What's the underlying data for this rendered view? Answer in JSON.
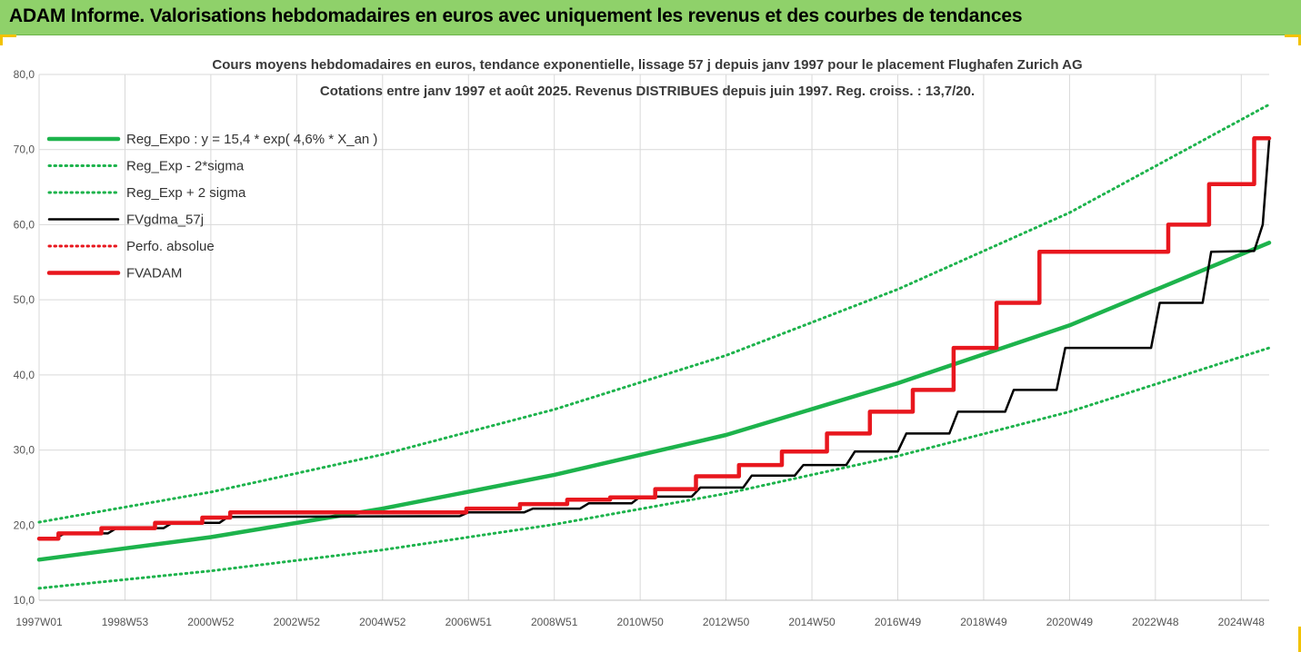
{
  "banner": {
    "title": "ADAM Informe. Valorisations hebdomadaires en euros avec uniquement les revenus et des courbes de tendances"
  },
  "chart_data": {
    "type": "line",
    "title_line1": "Cours moyens hebdomadaires en euros, tendance exponentielle, lissage 57 j depuis janv 1997  pour le placement Flughafen Zurich AG",
    "title_line2": "Cotations entre janv 1997 et août 2025.  Revenus DISTRIBUES depuis juin 1997.  Reg. croiss. : 13,7/20.",
    "xlabel": "",
    "ylabel": "",
    "xlim": [
      1997.0,
      2025.65
    ],
    "ylim": [
      10,
      80
    ],
    "grid": true,
    "legend_position": "top-left",
    "x_ticks": [
      {
        "label": "1997W01",
        "x": 1997.0
      },
      {
        "label": "1998W53",
        "x": 1999.0
      },
      {
        "label": "2000W52",
        "x": 2001.0
      },
      {
        "label": "2002W52",
        "x": 2003.0
      },
      {
        "label": "2004W52",
        "x": 2005.0
      },
      {
        "label": "2006W51",
        "x": 2007.0
      },
      {
        "label": "2008W51",
        "x": 2009.0
      },
      {
        "label": "2010W50",
        "x": 2011.0
      },
      {
        "label": "2012W50",
        "x": 2013.0
      },
      {
        "label": "2014W50",
        "x": 2015.0
      },
      {
        "label": "2016W49",
        "x": 2017.0
      },
      {
        "label": "2018W49",
        "x": 2019.0
      },
      {
        "label": "2020W49",
        "x": 2021.0
      },
      {
        "label": "2022W48",
        "x": 2023.0
      },
      {
        "label": "2024W48",
        "x": 2025.0
      }
    ],
    "y_ticks": [
      "10,0",
      "20,0",
      "30,0",
      "40,0",
      "50,0",
      "60,0",
      "70,0",
      "80,0"
    ],
    "y_tick_values": [
      10,
      20,
      30,
      40,
      50,
      60,
      70,
      80
    ],
    "series": [
      {
        "name": "Reg_Expo : y = 15,4 * exp( 4,6% *  X_an )",
        "style": "solid-thick",
        "color": "#1db34c",
        "x": [
          1997.0,
          2001.0,
          2005.0,
          2009.0,
          2013.0,
          2017.0,
          2021.0,
          2025.65
        ],
        "values": [
          15.4,
          18.4,
          22.2,
          26.7,
          32.0,
          38.9,
          46.6,
          57.6
        ]
      },
      {
        "name": "Reg_Exp - 2*sigma",
        "style": "dotted",
        "color": "#1db34c",
        "x": [
          1997.0,
          2001.0,
          2005.0,
          2009.0,
          2013.0,
          2017.0,
          2021.0,
          2025.65
        ],
        "values": [
          11.6,
          13.9,
          16.7,
          20.1,
          24.2,
          29.2,
          35.1,
          43.6
        ]
      },
      {
        "name": "Reg_Exp + 2 sigma",
        "style": "dotted",
        "color": "#1db34c",
        "x": [
          1997.0,
          2001.0,
          2005.0,
          2009.0,
          2013.0,
          2017.0,
          2021.0,
          2025.65
        ],
        "values": [
          20.4,
          24.4,
          29.4,
          35.4,
          42.6,
          51.4,
          61.6,
          76.0
        ]
      },
      {
        "name": "FVgdma_57j",
        "style": "solid",
        "color": "#000000",
        "x": [
          1997.0,
          1997.4,
          1997.6,
          1998.6,
          1998.8,
          1999.9,
          2000.1,
          2001.2,
          2001.4,
          2006.8,
          2007.0,
          2008.3,
          2008.5,
          2009.6,
          2009.8,
          2010.8,
          2011.0,
          2012.2,
          2012.4,
          2013.4,
          2013.6,
          2014.6,
          2014.8,
          2015.8,
          2016.0,
          2017.0,
          2017.2,
          2018.2,
          2018.4,
          2019.5,
          2019.7,
          2020.7,
          2020.9,
          2022.9,
          2023.1,
          2024.1,
          2024.3,
          2025.3,
          2025.5,
          2025.65
        ],
        "values": [
          18.2,
          18.3,
          18.9,
          18.9,
          19.6,
          19.6,
          20.3,
          20.3,
          21.1,
          21.2,
          21.7,
          21.7,
          22.2,
          22.2,
          22.9,
          22.9,
          23.8,
          23.8,
          25.0,
          25.0,
          26.6,
          26.6,
          28.0,
          28.0,
          29.8,
          29.8,
          32.2,
          32.2,
          35.1,
          35.1,
          38.0,
          38.0,
          43.6,
          43.6,
          49.6,
          49.6,
          56.4,
          56.5,
          60.0,
          71.2
        ]
      },
      {
        "name": "Perfo. absolue",
        "style": "dotted",
        "color": "#e8171e",
        "x": [],
        "values": []
      },
      {
        "name": "FVADAM",
        "style": "solid-thick",
        "color": "#e8171e",
        "x": [
          1997.0,
          1997.45,
          1997.45,
          1998.45,
          1998.45,
          1999.7,
          1999.7,
          2000.8,
          2000.8,
          2001.45,
          2001.45,
          2006.95,
          2006.95,
          2008.2,
          2008.2,
          2009.3,
          2009.3,
          2010.3,
          2010.3,
          2011.35,
          2011.35,
          2012.3,
          2012.3,
          2013.3,
          2013.3,
          2014.3,
          2014.3,
          2015.35,
          2015.35,
          2016.35,
          2016.35,
          2017.35,
          2017.35,
          2018.3,
          2018.3,
          2019.3,
          2019.3,
          2020.3,
          2020.3,
          2021.3,
          2021.3,
          2022.3,
          2022.3,
          2023.3,
          2023.3,
          2024.25,
          2024.25,
          2025.3,
          2025.3,
          2025.65
        ],
        "values": [
          18.2,
          18.2,
          18.9,
          18.9,
          19.6,
          19.6,
          20.3,
          20.3,
          21.0,
          21.0,
          21.7,
          21.7,
          22.2,
          22.2,
          22.8,
          22.8,
          23.4,
          23.4,
          23.7,
          23.7,
          24.8,
          24.8,
          26.5,
          26.5,
          28.0,
          28.0,
          29.8,
          29.8,
          32.2,
          32.2,
          35.1,
          35.1,
          38.0,
          38.0,
          43.6,
          43.6,
          49.6,
          49.6,
          56.4,
          56.4,
          56.4,
          56.4,
          56.4,
          56.4,
          60.0,
          60.0,
          65.4,
          65.4,
          71.5,
          71.5
        ]
      }
    ]
  }
}
